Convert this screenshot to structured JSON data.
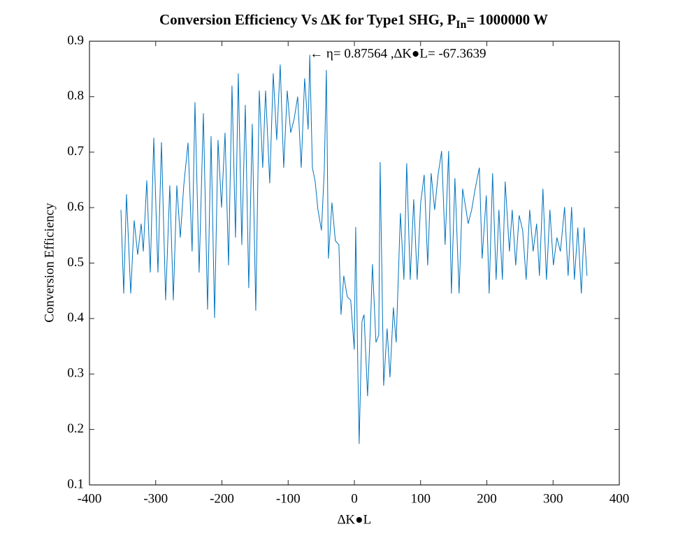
{
  "chart_data": {
    "type": "line",
    "title_parts": [
      "Conversion Efficiency Vs ∆K for Type1 SHG, P",
      "In",
      "= 1000000 W"
    ],
    "xlabel": "∆K●L",
    "ylabel": "Conversion Efficiency",
    "annotation": {
      "text": "← η= 0.87564 ,∆K●L= -67.3639",
      "x": -67.3639,
      "y": 0.87564
    },
    "xlim": [
      -400,
      400
    ],
    "xticks": [
      -400,
      -300,
      -200,
      -100,
      0,
      100,
      200,
      300,
      400
    ],
    "ylim": [
      0.1,
      0.9
    ],
    "yticks": [
      0.1,
      0.2,
      0.3,
      0.4,
      0.5,
      0.6,
      0.7,
      0.8,
      0.9
    ],
    "grid": false,
    "series": [
      {
        "color": "#0072bd",
        "x": [
          -352.5,
          -348.3,
          -344.1,
          -337.7,
          -332.5,
          -327.2,
          -321.9,
          -318.7,
          -313.5,
          -308.2,
          -302.9,
          -296.6,
          -291.3,
          -285.0,
          -278.7,
          -273.4,
          -268.1,
          -262.9,
          -257.6,
          -251.2,
          -245.0,
          -240.7,
          -234.4,
          -228.0,
          -221.7,
          -216.4,
          -211.1,
          -205.9,
          -200.6,
          -195.3,
          -190.0,
          -184.8,
          -179.5,
          -175.3,
          -170.0,
          -164.7,
          -159.5,
          -154.2,
          -148.9,
          -143.6,
          -138.4,
          -134.1,
          -127.8,
          -122.5,
          -117.3,
          -112.0,
          -106.7,
          -101.4,
          -96.2,
          -90.9,
          -85.6,
          -80.3,
          -75.1,
          -69.8,
          -67.3639,
          -63.4,
          -59.2,
          -55.0,
          -49.7,
          -45.5,
          -42.3,
          -39.2,
          -33.9,
          -28.7,
          -23.4,
          -20.2,
          -16.0,
          -10.7,
          -5.5,
          -0.2,
          2.0,
          5.1,
          7.2,
          11.5,
          14.6,
          19.9,
          24.1,
          27.3,
          32.6,
          36.8,
          38.9,
          44.2,
          49.4,
          53.7,
          58.9,
          63.1,
          69.5,
          74.8,
          79.0,
          84.3,
          89.6,
          94.8,
          100.1,
          105.4,
          110.7,
          115.9,
          121.2,
          126.4,
          131.7,
          137.0,
          142.3,
          146.5,
          151.8,
          158.1,
          163.4,
          168.6,
          171.8,
          177.1,
          182.4,
          188.7,
          192.9,
          199.2,
          203.5,
          208.7,
          214.0,
          218.2,
          223.5,
          227.7,
          234.1,
          238.3,
          243.6,
          248.8,
          254.1,
          259.4,
          264.7,
          269.9,
          275.2,
          279.4,
          284.7,
          290.0,
          295.2,
          300.5,
          305.8,
          311.1,
          317.4,
          322.7,
          328.0,
          332.2,
          337.4,
          342.7,
          346.9,
          351.2
        ],
        "values": [
          0.596,
          0.445,
          0.624,
          0.445,
          0.577,
          0.515,
          0.571,
          0.521,
          0.649,
          0.483,
          0.726,
          0.483,
          0.718,
          0.433,
          0.64,
          0.433,
          0.64,
          0.546,
          0.64,
          0.717,
          0.521,
          0.79,
          0.483,
          0.77,
          0.416,
          0.729,
          0.401,
          0.722,
          0.6,
          0.735,
          0.496,
          0.82,
          0.546,
          0.842,
          0.533,
          0.785,
          0.455,
          0.751,
          0.414,
          0.811,
          0.672,
          0.811,
          0.644,
          0.842,
          0.722,
          0.858,
          0.672,
          0.811,
          0.735,
          0.76,
          0.8,
          0.672,
          0.833,
          0.741,
          0.87564,
          0.672,
          0.647,
          0.596,
          0.559,
          0.666,
          0.848,
          0.508,
          0.609,
          0.54,
          0.533,
          0.407,
          0.477,
          0.439,
          0.433,
          0.344,
          0.565,
          0.319,
          0.174,
          0.395,
          0.407,
          0.26,
          0.382,
          0.498,
          0.357,
          0.37,
          0.682,
          0.279,
          0.382,
          0.294,
          0.42,
          0.357,
          0.59,
          0.47,
          0.68,
          0.47,
          0.615,
          0.47,
          0.609,
          0.659,
          0.496,
          0.662,
          0.596,
          0.659,
          0.702,
          0.533,
          0.702,
          0.445,
          0.653,
          0.445,
          0.634,
          0.596,
          0.571,
          0.596,
          0.634,
          0.672,
          0.508,
          0.622,
          0.445,
          0.662,
          0.47,
          0.596,
          0.47,
          0.647,
          0.521,
          0.596,
          0.496,
          0.586,
          0.559,
          0.47,
          0.596,
          0.521,
          0.571,
          0.477,
          0.634,
          0.47,
          0.596,
          0.496,
          0.546,
          0.521,
          0.601,
          0.477,
          0.601,
          0.47,
          0.564,
          0.445,
          0.564,
          0.477
        ]
      }
    ]
  }
}
